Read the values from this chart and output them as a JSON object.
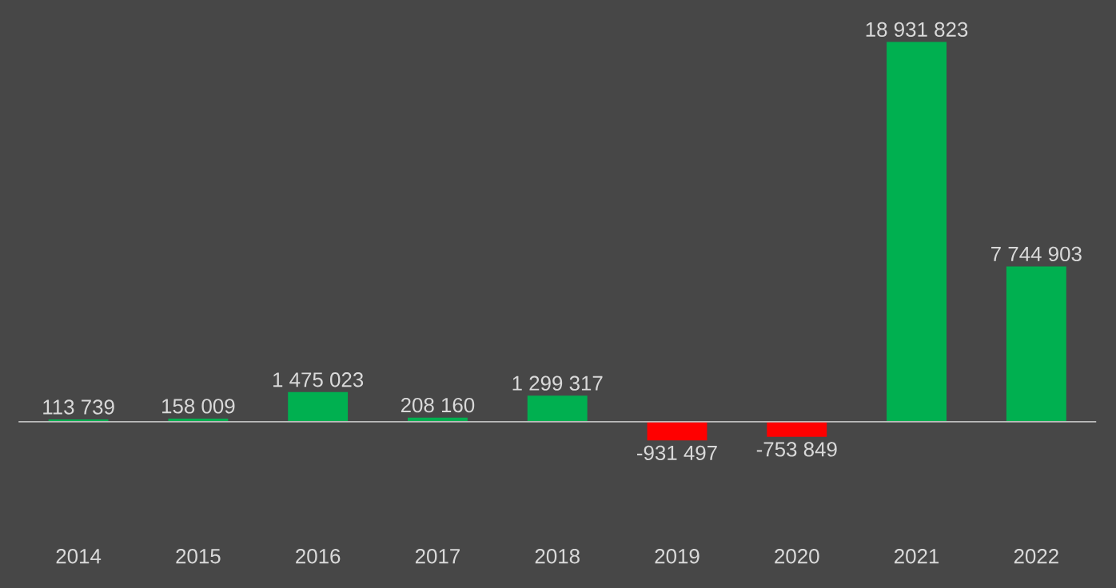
{
  "chart_data": {
    "type": "bar",
    "categories": [
      "2014",
      "2015",
      "2016",
      "2017",
      "2018",
      "2019",
      "2020",
      "2021",
      "2022"
    ],
    "values": [
      113739,
      158009,
      1475023,
      208160,
      1299317,
      -931497,
      -753849,
      18931823,
      7744903
    ],
    "colors": [
      "#00b050",
      "#00b050",
      "#00b050",
      "#00b050",
      "#00b050",
      "#ff0000",
      "#ff0000",
      "#00b050",
      "#00b050"
    ],
    "value_labels": [
      "113 739",
      "158 009",
      "1 475 023",
      "208 160",
      "1 299 317",
      "-931 497",
      "-753 849",
      "18 931 823",
      "7 744 903"
    ]
  }
}
